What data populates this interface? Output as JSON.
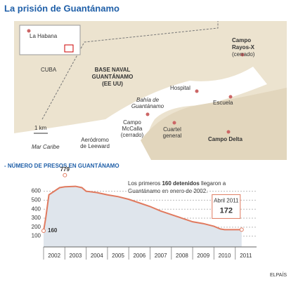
{
  "header": {
    "title": "La prisión de Guantánamo"
  },
  "map": {
    "inset_label": "La Habana",
    "country": "CUBA",
    "base": [
      "BASE NAVAL",
      "GUANTÁNAMO",
      "(EE UU)"
    ],
    "bay": [
      "Bahía de",
      "Guantánamo"
    ],
    "hospital": "Hospital",
    "school": "Escuela",
    "rayos": [
      "Campo",
      "Rayos-X",
      "(cerrado)"
    ],
    "mccalla": [
      "Campo",
      "McCalla",
      "(cerrado)"
    ],
    "hq": [
      "Cuartel",
      "general"
    ],
    "delta": "Campo Delta",
    "airfield": [
      "Aeródromo",
      "de Leeward"
    ],
    "sea": "Mar Caribe",
    "scale": "1 km"
  },
  "chart_data": {
    "type": "area",
    "title": "- NÚMERO DE PRESOS EN GUANTÁNAMO",
    "note": [
      "Los primeros ",
      "160 detenidos",
      " llegaron a",
      "Guantánamo en enero de 2002."
    ],
    "categories": [
      "2002",
      "2003",
      "2004",
      "2005",
      "2006",
      "2007",
      "2008",
      "2009",
      "2010",
      "2011"
    ],
    "xlim": [
      2002,
      2012
    ],
    "ylim": [
      -20,
      800
    ],
    "yticks": [
      100,
      200,
      300,
      400,
      500,
      600
    ],
    "grid": true,
    "series": [
      {
        "color": "#e07a5f",
        "x": [
          2002.0,
          2002.1,
          2002.25,
          2002.5,
          2002.75,
          2003.0,
          2003.5,
          2003.8,
          2004.0,
          2004.5,
          2005.0,
          2005.5,
          2006.0,
          2006.5,
          2007.0,
          2007.5,
          2008.0,
          2008.5,
          2009.0,
          2009.5,
          2010.0,
          2010.3,
          2010.5,
          2011.0,
          2011.3
        ],
        "values": [
          160,
          300,
          560,
          600,
          640,
          650,
          655,
          640,
          600,
          585,
          560,
          540,
          510,
          470,
          430,
          380,
          340,
          300,
          260,
          240,
          210,
          180,
          172,
          172,
          172
        ]
      }
    ],
    "annotations": [
      {
        "x": 2002.0,
        "value": 160,
        "label": "160"
      },
      {
        "x": 2003.0,
        "value": 779,
        "label": "779"
      },
      {
        "x": 2011.3,
        "value": 172,
        "label": "172",
        "date": "Abril 2011"
      }
    ],
    "source": "ELPAÍS"
  }
}
